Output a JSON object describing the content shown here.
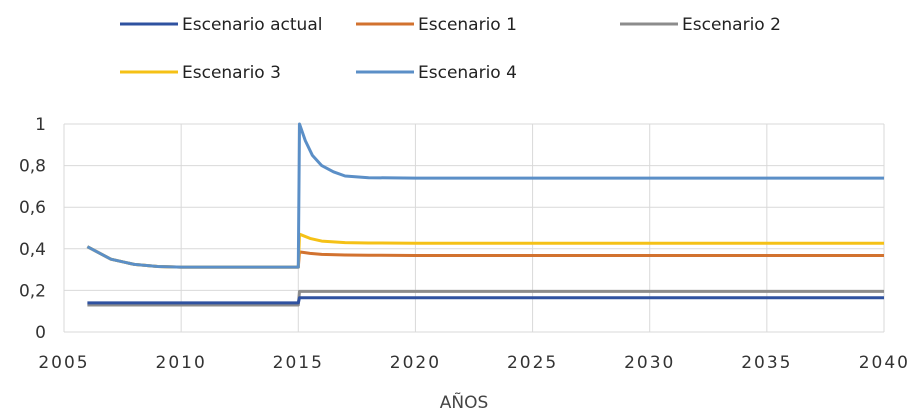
{
  "chart_data": {
    "type": "line",
    "title": "",
    "xlabel": "AÑOS",
    "ylabel": "",
    "xlim": [
      2005,
      2040
    ],
    "ylim": [
      0,
      1
    ],
    "x_ticks": [
      2005,
      2010,
      2015,
      2020,
      2025,
      2030,
      2035,
      2040
    ],
    "y_ticks": [
      {
        "value": 0,
        "label": "0"
      },
      {
        "value": 0.2,
        "label": "0,2"
      },
      {
        "value": 0.4,
        "label": "0,4"
      },
      {
        "value": 0.6,
        "label": "0,6"
      },
      {
        "value": 0.8,
        "label": "0,8"
      },
      {
        "value": 1,
        "label": "1"
      }
    ],
    "grid": true,
    "legend_position": "top",
    "series": [
      {
        "name": "Escenario actual",
        "color": "#2f52a0",
        "points": [
          [
            2006,
            0.14
          ],
          [
            2015,
            0.14
          ],
          [
            2015.05,
            0.165
          ],
          [
            2016,
            0.165
          ],
          [
            2040,
            0.165
          ]
        ]
      },
      {
        "name": "Escenario 1",
        "color": "#d2722f",
        "points": [
          [
            2006,
            0.41
          ],
          [
            2007,
            0.35
          ],
          [
            2008,
            0.325
          ],
          [
            2009,
            0.315
          ],
          [
            2010,
            0.312
          ],
          [
            2015,
            0.312
          ],
          [
            2015.05,
            0.385
          ],
          [
            2015.5,
            0.378
          ],
          [
            2016,
            0.373
          ],
          [
            2017,
            0.37
          ],
          [
            2018,
            0.369
          ],
          [
            2020,
            0.368
          ],
          [
            2040,
            0.368
          ]
        ]
      },
      {
        "name": "Escenario 2",
        "color": "#8c8c8c",
        "points": [
          [
            2006,
            0.13
          ],
          [
            2015,
            0.13
          ],
          [
            2015.05,
            0.195
          ],
          [
            2040,
            0.195
          ]
        ]
      },
      {
        "name": "Escenario 3",
        "color": "#f5c116",
        "points": [
          [
            2006,
            0.41
          ],
          [
            2007,
            0.35
          ],
          [
            2008,
            0.325
          ],
          [
            2009,
            0.315
          ],
          [
            2010,
            0.312
          ],
          [
            2015,
            0.312
          ],
          [
            2015.05,
            0.47
          ],
          [
            2015.5,
            0.45
          ],
          [
            2016,
            0.437
          ],
          [
            2017,
            0.43
          ],
          [
            2018,
            0.428
          ],
          [
            2020,
            0.427
          ],
          [
            2040,
            0.427
          ]
        ]
      },
      {
        "name": "Escenario 4",
        "color": "#5b8fc7",
        "points": [
          [
            2006,
            0.41
          ],
          [
            2007,
            0.35
          ],
          [
            2008,
            0.325
          ],
          [
            2009,
            0.315
          ],
          [
            2010,
            0.312
          ],
          [
            2015,
            0.312
          ],
          [
            2015.05,
            1.0
          ],
          [
            2015.3,
            0.92
          ],
          [
            2015.6,
            0.85
          ],
          [
            2016,
            0.8
          ],
          [
            2016.5,
            0.77
          ],
          [
            2017,
            0.75
          ],
          [
            2018,
            0.742
          ],
          [
            2020,
            0.74
          ],
          [
            2040,
            0.74
          ]
        ]
      }
    ]
  }
}
